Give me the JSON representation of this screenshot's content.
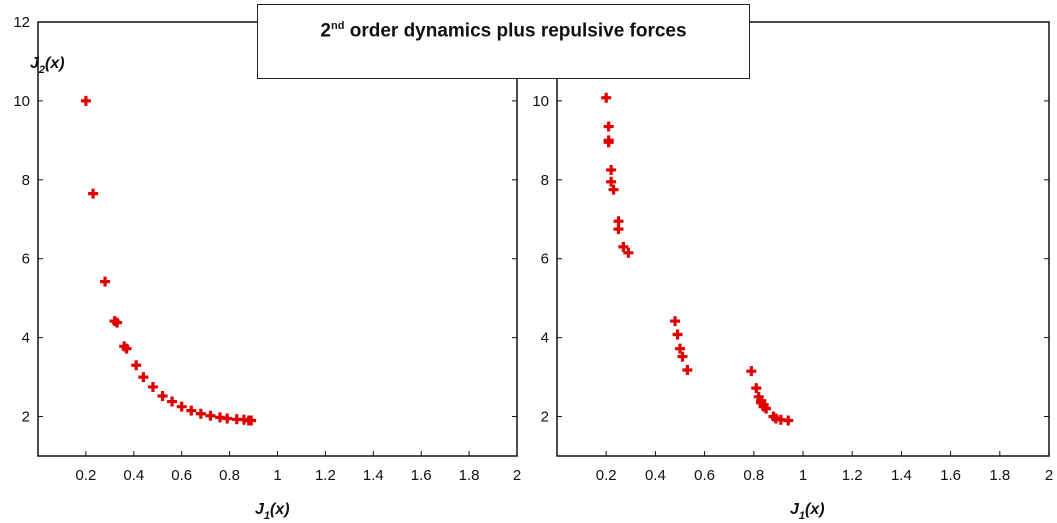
{
  "title": {
    "super": "nd",
    "prefix": "2",
    "main": "order dynamics plus repulsive forces"
  },
  "chart_data": [
    {
      "type": "scatter",
      "xlabel_main": "J",
      "xlabel_sub": "1",
      "xlabel_tail": "(x)",
      "ylabel_main": "J",
      "ylabel_sub": "2",
      "ylabel_tail": "(x)",
      "xlim": [
        0.0,
        2.0
      ],
      "ylim": [
        1.0,
        12.0
      ],
      "xticks": [
        "0.2",
        "0.4",
        "0.6",
        "0.8",
        "1",
        "1.2",
        "1.4",
        "1.6",
        "1.8",
        "2"
      ],
      "yticks": [
        "2",
        "4",
        "6",
        "8",
        "10",
        "12"
      ],
      "marker_color": "#e00000",
      "points": [
        [
          0.2,
          10.0
        ],
        [
          0.23,
          7.65
        ],
        [
          0.28,
          5.42
        ],
        [
          0.32,
          4.42
        ],
        [
          0.33,
          4.38
        ],
        [
          0.36,
          3.78
        ],
        [
          0.37,
          3.72
        ],
        [
          0.41,
          3.3
        ],
        [
          0.44,
          3.0
        ],
        [
          0.48,
          2.75
        ],
        [
          0.52,
          2.52
        ],
        [
          0.56,
          2.38
        ],
        [
          0.6,
          2.25
        ],
        [
          0.64,
          2.15
        ],
        [
          0.68,
          2.07
        ],
        [
          0.72,
          2.02
        ],
        [
          0.76,
          1.98
        ],
        [
          0.79,
          1.95
        ],
        [
          0.83,
          1.93
        ],
        [
          0.86,
          1.92
        ],
        [
          0.88,
          1.9
        ],
        [
          0.89,
          1.9
        ]
      ]
    },
    {
      "type": "scatter",
      "xlabel_main": "J",
      "xlabel_sub": "1",
      "xlabel_tail": "(x)",
      "xlim": [
        0.0,
        2.0
      ],
      "ylim": [
        1.0,
        12.0
      ],
      "xticks": [
        "0.2",
        "0.4",
        "0.6",
        "0.8",
        "1",
        "1.2",
        "1.4",
        "1.6",
        "1.8",
        "2"
      ],
      "yticks": [
        "2",
        "4",
        "6",
        "8",
        "10"
      ],
      "marker_color": "#e00000",
      "points": [
        [
          0.2,
          10.08
        ],
        [
          0.21,
          9.35
        ],
        [
          0.21,
          9.0
        ],
        [
          0.21,
          8.95
        ],
        [
          0.22,
          8.25
        ],
        [
          0.22,
          7.95
        ],
        [
          0.23,
          7.75
        ],
        [
          0.25,
          6.95
        ],
        [
          0.25,
          6.75
        ],
        [
          0.27,
          6.3
        ],
        [
          0.29,
          6.15
        ],
        [
          0.48,
          4.42
        ],
        [
          0.49,
          4.08
        ],
        [
          0.5,
          3.72
        ],
        [
          0.51,
          3.52
        ],
        [
          0.53,
          3.18
        ],
        [
          0.79,
          3.15
        ],
        [
          0.81,
          2.72
        ],
        [
          0.82,
          2.5
        ],
        [
          0.83,
          2.4
        ],
        [
          0.83,
          2.35
        ],
        [
          0.84,
          2.3
        ],
        [
          0.84,
          2.25
        ],
        [
          0.85,
          2.2
        ],
        [
          0.88,
          2.0
        ],
        [
          0.89,
          1.95
        ],
        [
          0.91,
          1.92
        ],
        [
          0.94,
          1.9
        ]
      ]
    }
  ]
}
